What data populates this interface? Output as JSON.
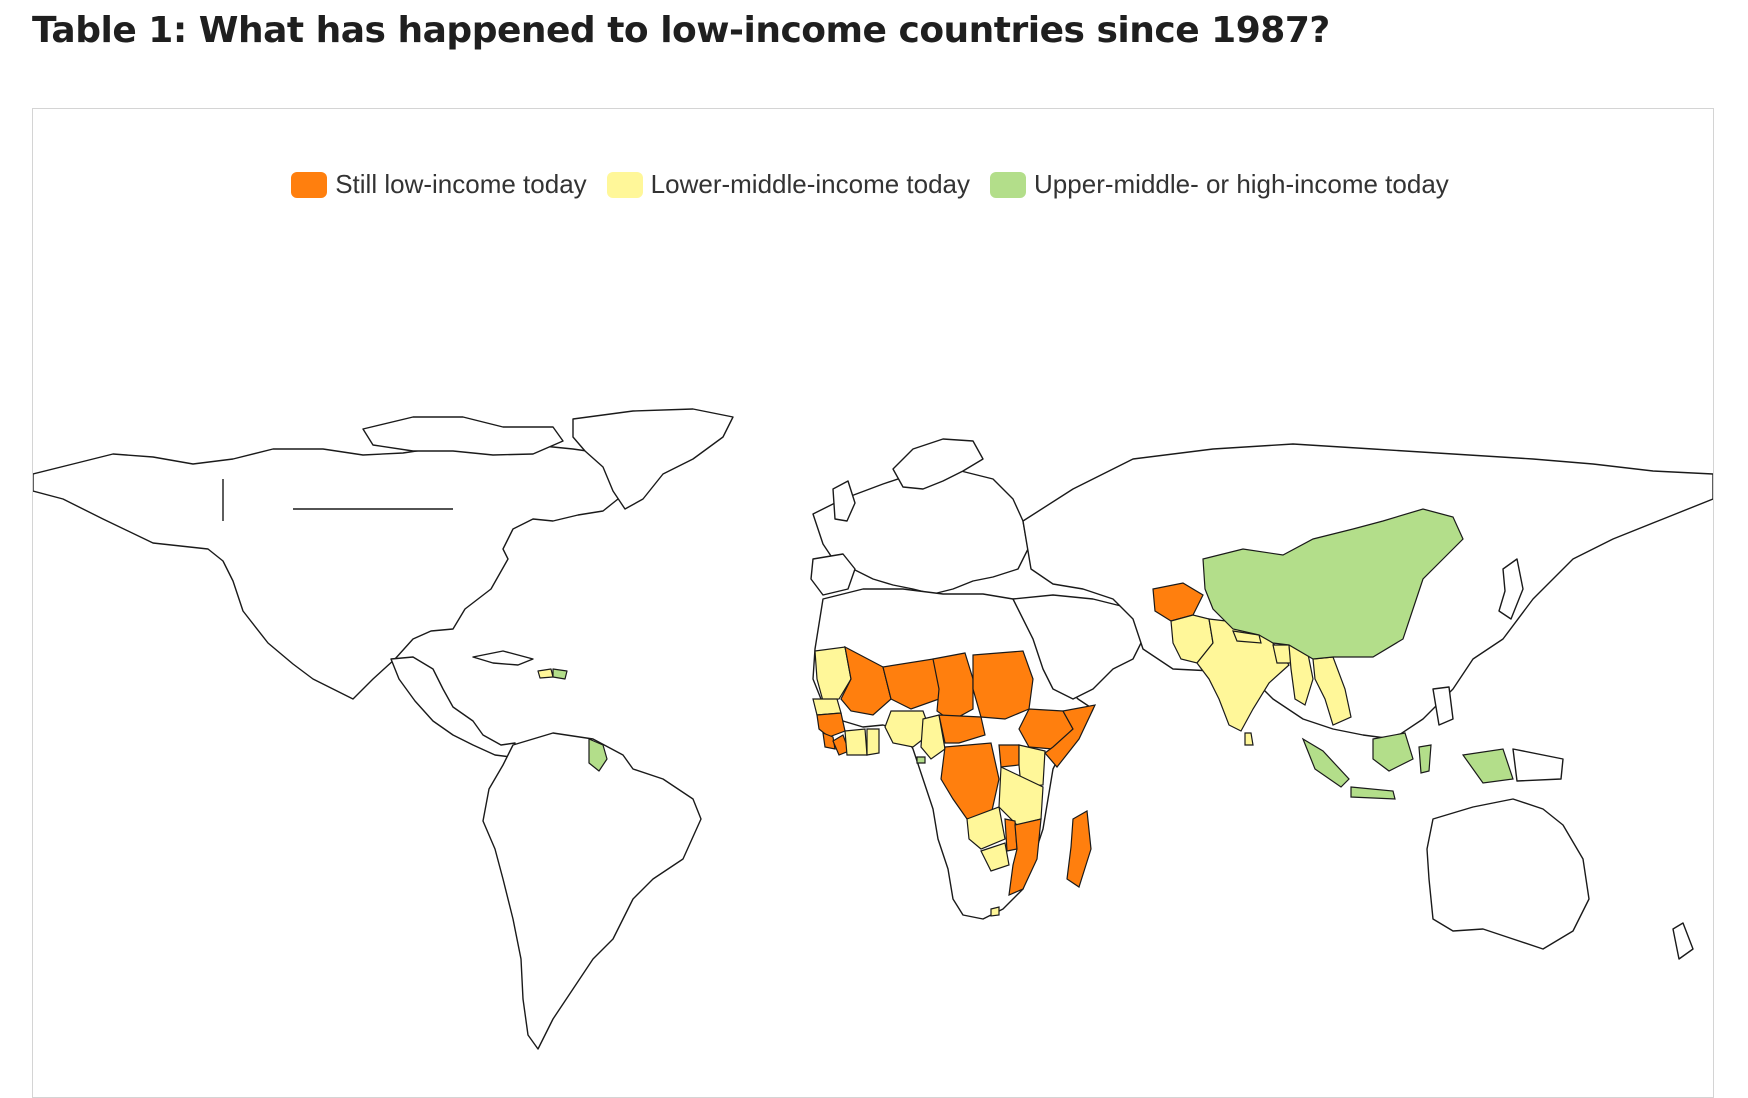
{
  "title": "Table 1: What has happened to low-income countries since 1987?",
  "legend": {
    "low": {
      "label": "Still low-income today",
      "color": "#ff7f0e"
    },
    "lmic": {
      "label": "Lower-middle-income today",
      "color": "#fff799"
    },
    "umic": {
      "label": "Upper-middle- or high-income today",
      "color": "#b3de8a"
    }
  },
  "map": {
    "projection": "equirectangular",
    "categories": {
      "still_low_income": [
        "Mali",
        "Niger",
        "Chad",
        "Sudan",
        "Burkina Faso",
        "Guinea",
        "Sierra Leone",
        "Liberia",
        "Togo",
        "Central African Republic",
        "Democratic Republic of the Congo",
        "Uganda",
        "Rwanda",
        "Burundi",
        "Ethiopia",
        "Somalia",
        "Eritrea",
        "Malawi",
        "Mozambique",
        "Madagascar",
        "Gambia",
        "Guinea-Bissau",
        "Afghanistan"
      ],
      "lower_middle_income": [
        "Mauritania",
        "Senegal",
        "Cote d'Ivoire",
        "Ghana",
        "Benin",
        "Nigeria",
        "Cameroon",
        "Kenya",
        "Tanzania",
        "Zambia",
        "Zimbabwe",
        "Lesotho",
        "Pakistan",
        "India",
        "Nepal",
        "Bhutan",
        "Bangladesh",
        "Myanmar",
        "Laos",
        "Cambodia",
        "Vietnam",
        "Haiti",
        "Sri Lanka"
      ],
      "upper_middle_or_high_income": [
        "China",
        "Guyana",
        "Indonesia",
        "Equatorial Guinea",
        "Dominican Republic"
      ]
    }
  }
}
